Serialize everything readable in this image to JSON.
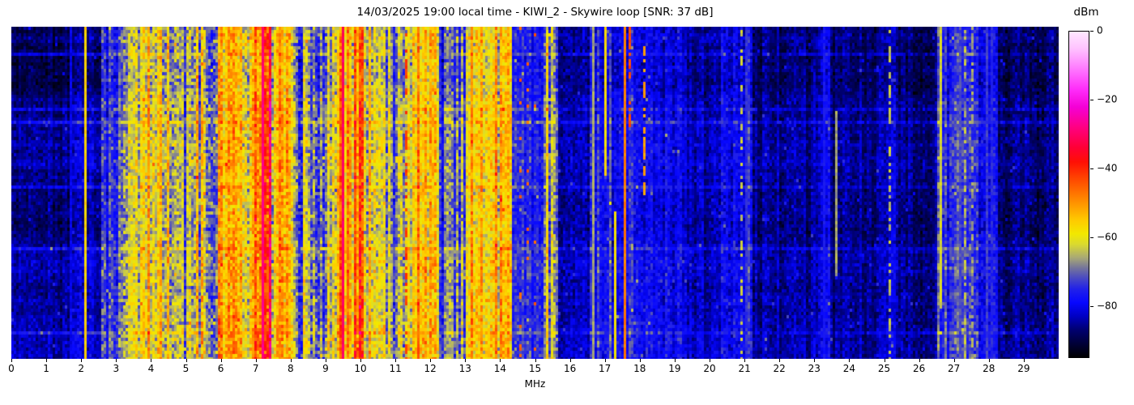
{
  "chart_data": {
    "type": "heatmap",
    "subtype": "radio-spectrogram-waterfall",
    "title": "14/03/2025 19:00 local time - KIWI_2 - Skywire loop [SNR: 37 dB]",
    "xlabel": "MHz",
    "colorbar_label": "dBm",
    "x_range": [
      0,
      30
    ],
    "x_ticks": [
      0,
      1,
      2,
      3,
      4,
      5,
      6,
      7,
      8,
      9,
      10,
      11,
      12,
      13,
      14,
      15,
      16,
      17,
      18,
      19,
      20,
      21,
      22,
      23,
      24,
      25,
      26,
      27,
      28,
      29
    ],
    "value_range_dbm": [
      -95,
      0
    ],
    "colorbar_ticks": [
      {
        "value": 0,
        "label": "0"
      },
      {
        "value": -20,
        "label": "−20"
      },
      {
        "value": -40,
        "label": "−40"
      },
      {
        "value": -60,
        "label": "−60"
      },
      {
        "value": -80,
        "label": "−80"
      }
    ],
    "colormap_stops": [
      {
        "dbm": 0,
        "color": "#ffe8ff"
      },
      {
        "dbm": -5,
        "color": "#ffc2ff"
      },
      {
        "dbm": -11,
        "color": "#ff77ff"
      },
      {
        "dbm": -17,
        "color": "#ff2bf9"
      },
      {
        "dbm": -22,
        "color": "#f400d6"
      },
      {
        "dbm": -28,
        "color": "#ff0080"
      },
      {
        "dbm": -34,
        "color": "#ff0033"
      },
      {
        "dbm": -38,
        "color": "#ff0f05"
      },
      {
        "dbm": -44,
        "color": "#ff5200"
      },
      {
        "dbm": -50,
        "color": "#ff9300"
      },
      {
        "dbm": -55,
        "color": "#ffca00"
      },
      {
        "dbm": -59,
        "color": "#f2e800"
      },
      {
        "dbm": -62,
        "color": "#dada2e"
      },
      {
        "dbm": -66,
        "color": "#a8a876"
      },
      {
        "dbm": -69,
        "color": "#74749b"
      },
      {
        "dbm": -72,
        "color": "#4848c4"
      },
      {
        "dbm": -75,
        "color": "#2222e8"
      },
      {
        "dbm": -79,
        "color": "#0707ff"
      },
      {
        "dbm": -83,
        "color": "#0000c4"
      },
      {
        "dbm": -87,
        "color": "#000070"
      },
      {
        "dbm": -91,
        "color": "#000038"
      },
      {
        "dbm": -95,
        "color": "#000000"
      }
    ],
    "bands": [
      {
        "from": 0.0,
        "to": 1.75,
        "level_dbm": -88,
        "stripe_db": 2.5
      },
      {
        "from": 1.75,
        "to": 2.05,
        "level_dbm": -83,
        "stripe_db": 3
      },
      {
        "from": 2.05,
        "to": 2.55,
        "level_dbm": -86,
        "stripe_db": 2.5
      },
      {
        "from": 2.55,
        "to": 3.2,
        "level_dbm": -76,
        "stripe_db": 7
      },
      {
        "from": 3.2,
        "to": 4.35,
        "level_dbm": -61,
        "stripe_db": 9
      },
      {
        "from": 4.35,
        "to": 5.0,
        "level_dbm": -68,
        "stripe_db": 10
      },
      {
        "from": 5.0,
        "to": 5.55,
        "level_dbm": -64,
        "stripe_db": 10
      },
      {
        "from": 5.55,
        "to": 5.9,
        "level_dbm": -71,
        "stripe_db": 9
      },
      {
        "from": 5.9,
        "to": 6.45,
        "level_dbm": -53,
        "stripe_db": 10
      },
      {
        "from": 6.45,
        "to": 6.95,
        "level_dbm": -59,
        "stripe_db": 11
      },
      {
        "from": 6.95,
        "to": 7.45,
        "level_dbm": -44,
        "stripe_db": 11
      },
      {
        "from": 7.45,
        "to": 8.15,
        "level_dbm": -57,
        "stripe_db": 10
      },
      {
        "from": 8.15,
        "to": 9.3,
        "level_dbm": -68,
        "stripe_db": 10
      },
      {
        "from": 9.3,
        "to": 10.1,
        "level_dbm": -52,
        "stripe_db": 10
      },
      {
        "from": 10.1,
        "to": 10.55,
        "level_dbm": -61,
        "stripe_db": 10
      },
      {
        "from": 10.55,
        "to": 11.35,
        "level_dbm": -69,
        "stripe_db": 9
      },
      {
        "from": 11.35,
        "to": 11.55,
        "level_dbm": -60,
        "stripe_db": 9
      },
      {
        "from": 11.55,
        "to": 12.2,
        "level_dbm": -51,
        "stripe_db": 9
      },
      {
        "from": 12.2,
        "to": 13.05,
        "level_dbm": -71,
        "stripe_db": 8
      },
      {
        "from": 13.05,
        "to": 14.35,
        "level_dbm": -57,
        "stripe_db": 9
      },
      {
        "from": 14.35,
        "to": 15.25,
        "level_dbm": -77,
        "stripe_db": 4
      },
      {
        "from": 15.25,
        "to": 15.65,
        "level_dbm": -63,
        "stripe_db": 8
      },
      {
        "from": 15.65,
        "to": 16.6,
        "level_dbm": -84,
        "stripe_db": 3.5
      },
      {
        "from": 16.6,
        "to": 18.35,
        "level_dbm": -78,
        "stripe_db": 4.5
      },
      {
        "from": 18.35,
        "to": 19.2,
        "level_dbm": -80,
        "stripe_db": 4
      },
      {
        "from": 19.2,
        "to": 20.35,
        "level_dbm": -85,
        "stripe_db": 3
      },
      {
        "from": 20.35,
        "to": 21.25,
        "level_dbm": -78,
        "stripe_db": 4.5
      },
      {
        "from": 21.25,
        "to": 23.1,
        "level_dbm": -86,
        "stripe_db": 3
      },
      {
        "from": 23.1,
        "to": 23.45,
        "level_dbm": -81,
        "stripe_db": 3.5
      },
      {
        "from": 23.45,
        "to": 25.05,
        "level_dbm": -87,
        "stripe_db": 3
      },
      {
        "from": 25.05,
        "to": 25.35,
        "level_dbm": -83,
        "stripe_db": 3.5
      },
      {
        "from": 25.35,
        "to": 26.5,
        "level_dbm": -88,
        "stripe_db": 3
      },
      {
        "from": 26.5,
        "to": 27.7,
        "level_dbm": -76,
        "stripe_db": 4.5
      },
      {
        "from": 27.7,
        "to": 28.25,
        "level_dbm": -80,
        "stripe_db": 4
      },
      {
        "from": 28.25,
        "to": 30.01,
        "level_dbm": -88,
        "stripe_db": 3
      }
    ],
    "carriers": [
      {
        "freq_mhz": 1.7,
        "level_dbm": -80
      },
      {
        "freq_mhz": 2.15,
        "level_dbm": -56
      },
      {
        "freq_mhz": 7.2,
        "level_dbm": -28,
        "width_mhz": 0.1
      },
      {
        "freq_mhz": 9.5,
        "level_dbm": -30,
        "width_mhz": 0.08
      },
      {
        "freq_mhz": 11.28,
        "level_dbm": -42,
        "dash": 0.5
      },
      {
        "freq_mhz": 14.55,
        "level_dbm": -45,
        "dash": 0.15
      },
      {
        "freq_mhz": 14.78,
        "level_dbm": -46,
        "dash": 0.13
      },
      {
        "freq_mhz": 15.02,
        "level_dbm": -45,
        "dash": 0.13
      },
      {
        "freq_mhz": 16.68,
        "level_dbm": -66
      },
      {
        "freq_mhz": 17.05,
        "level_dbm": -57,
        "top": 0,
        "bottom": 0.45
      },
      {
        "freq_mhz": 17.28,
        "level_dbm": -58,
        "top": 0.55,
        "bottom": 1
      },
      {
        "freq_mhz": 17.55,
        "level_dbm": -48
      },
      {
        "freq_mhz": 17.72,
        "level_dbm": -43,
        "top": 0,
        "bottom": 0.3,
        "dash": 0.55
      },
      {
        "freq_mhz": 18.1,
        "level_dbm": -51,
        "top": 0.05,
        "bottom": 0.5,
        "dash": 0.6
      },
      {
        "freq_mhz": 20.92,
        "level_dbm": -63,
        "dash": 0.35
      },
      {
        "freq_mhz": 21.07,
        "level_dbm": -74
      },
      {
        "freq_mhz": 23.3,
        "level_dbm": -77
      },
      {
        "freq_mhz": 23.65,
        "level_dbm": -66,
        "top": 0.25,
        "bottom": 0.75
      },
      {
        "freq_mhz": 25.18,
        "level_dbm": -64,
        "dash": 0.5
      },
      {
        "freq_mhz": 26.63,
        "level_dbm": -62,
        "top": 0,
        "bottom": 0.85
      },
      {
        "freq_mhz": 27.15,
        "level_dbm": -72
      },
      {
        "freq_mhz": 27.35,
        "level_dbm": -64,
        "dash": 0.45
      },
      {
        "freq_mhz": 27.55,
        "level_dbm": -66,
        "dash": 0.45
      },
      {
        "freq_mhz": 27.95,
        "level_dbm": -73
      },
      {
        "freq_mhz": 28.1,
        "level_dbm": -75
      }
    ],
    "noise": {
      "seed": 1234,
      "cell_jitter_base_db": 3,
      "cell_jitter_stripe_factor": 0.5,
      "cell_jitter_scale": 1.2,
      "row_drift_db": 2.5,
      "streak_rows": 9,
      "streak_boost_db": 3.8,
      "low_freq_row_gain": 1.9,
      "low_freq_limit_mhz": 2.6,
      "sparkle_prob": 0.012,
      "sparkle_boost_db": 8
    }
  }
}
